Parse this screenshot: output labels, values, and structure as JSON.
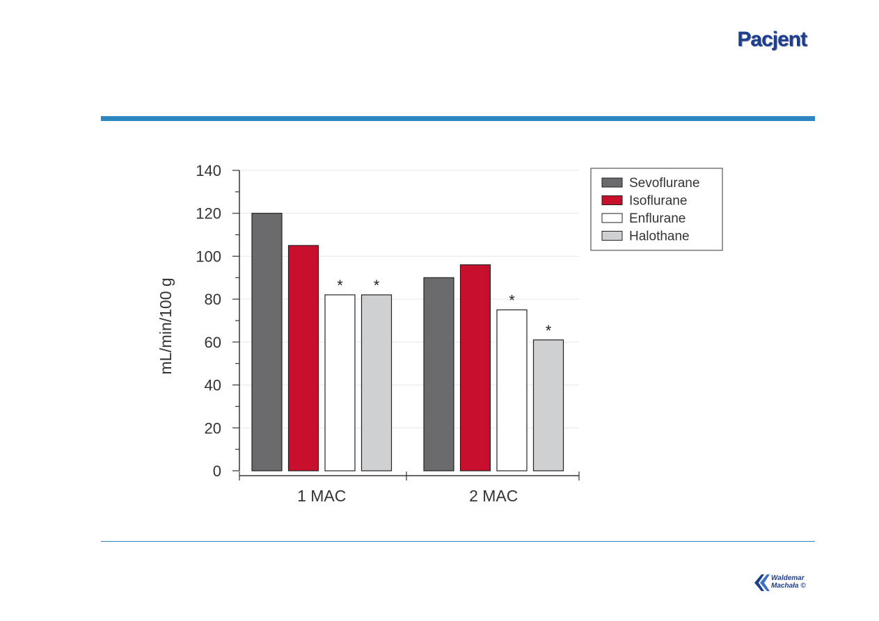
{
  "slide": {
    "title": "Pacjent"
  },
  "logo": {
    "line1": "Waldemar",
    "line2": "Machała ©"
  },
  "colors": {
    "accent_rule": "#2e86c1",
    "title": "#1e3f8c"
  },
  "chart_data": {
    "type": "bar",
    "title": "",
    "xlabel": "",
    "ylabel": "mL/min/100 g",
    "ylim": [
      0,
      140
    ],
    "yticks": [
      0,
      20,
      40,
      60,
      80,
      100,
      120,
      140
    ],
    "grid": true,
    "legend_position": "top-right",
    "categories": [
      "1 MAC",
      "2 MAC"
    ],
    "series": [
      {
        "name": "Sevoflurane",
        "color": "#6b6b6d",
        "values": [
          120,
          90
        ],
        "annotations": [
          "",
          ""
        ]
      },
      {
        "name": "Isoflurane",
        "color": "#c8102e",
        "values": [
          105,
          96
        ],
        "annotations": [
          "",
          ""
        ]
      },
      {
        "name": "Enflurane",
        "color": "#ffffff",
        "values": [
          82,
          75
        ],
        "annotations": [
          "*",
          "*"
        ]
      },
      {
        "name": "Halothane",
        "color": "#cfd0d2",
        "values": [
          82,
          61
        ],
        "annotations": [
          "*",
          "*"
        ]
      }
    ]
  }
}
